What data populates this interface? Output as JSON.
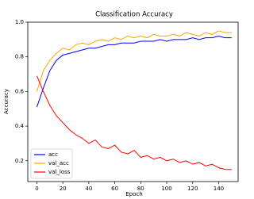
{
  "chart_data": {
    "type": "line",
    "title": "Classification Accuracy",
    "x_label": "Epoch",
    "y_label": "Accuracy",
    "x": [
      0,
      5,
      10,
      15,
      20,
      25,
      30,
      35,
      40,
      45,
      50,
      55,
      60,
      65,
      70,
      75,
      80,
      85,
      90,
      95,
      100,
      105,
      110,
      115,
      120,
      125,
      130,
      135,
      140,
      145,
      150
    ],
    "series": [
      {
        "name": "acc",
        "color": "#0000ff",
        "values": [
          0.51,
          0.62,
          0.72,
          0.78,
          0.81,
          0.82,
          0.83,
          0.84,
          0.85,
          0.85,
          0.86,
          0.87,
          0.87,
          0.88,
          0.88,
          0.88,
          0.89,
          0.89,
          0.89,
          0.9,
          0.89,
          0.9,
          0.9,
          0.9,
          0.91,
          0.9,
          0.91,
          0.91,
          0.92,
          0.91,
          0.91
        ]
      },
      {
        "name": "val_acc",
        "color": "#ffa500",
        "values": [
          0.6,
          0.72,
          0.78,
          0.82,
          0.85,
          0.84,
          0.87,
          0.88,
          0.87,
          0.89,
          0.9,
          0.89,
          0.91,
          0.9,
          0.92,
          0.91,
          0.92,
          0.91,
          0.93,
          0.92,
          0.92,
          0.93,
          0.92,
          0.94,
          0.93,
          0.92,
          0.94,
          0.93,
          0.95,
          0.94,
          0.94
        ]
      },
      {
        "name": "val_loss",
        "color": "#ff0000",
        "values": [
          0.69,
          0.6,
          0.52,
          0.46,
          0.42,
          0.38,
          0.35,
          0.33,
          0.3,
          0.32,
          0.28,
          0.27,
          0.29,
          0.25,
          0.24,
          0.26,
          0.22,
          0.23,
          0.21,
          0.22,
          0.2,
          0.21,
          0.19,
          0.2,
          0.18,
          0.19,
          0.17,
          0.18,
          0.16,
          0.15,
          0.15
        ]
      }
    ],
    "xlim": [
      -7,
      155
    ],
    "xticks": [
      0,
      20,
      40,
      60,
      80,
      100,
      120,
      140
    ],
    "ylim": [
      0.08,
      1.0
    ],
    "yticks": [
      0.2,
      0.4,
      0.6,
      0.8,
      {
        "value": 1,
        "label": "1.0"
      }
    ],
    "legend": "lower left"
  }
}
